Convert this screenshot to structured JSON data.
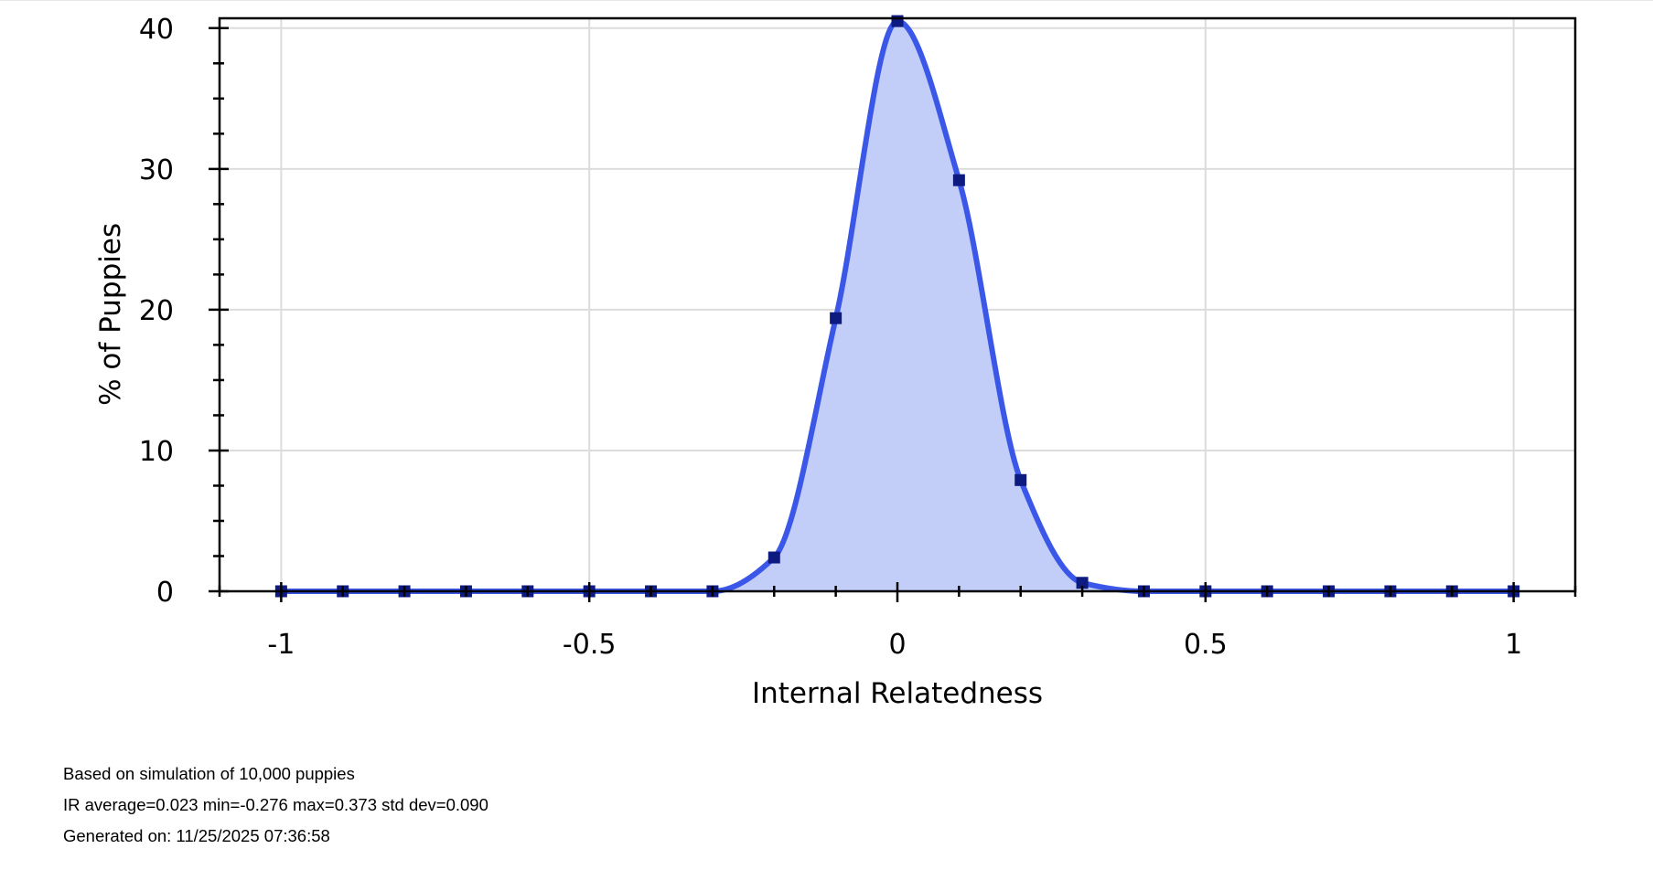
{
  "chart_data": {
    "type": "line",
    "title": "",
    "xlabel": "Internal Relatedness",
    "ylabel": "% of Puppies",
    "xlim": [
      -1.1,
      1.1
    ],
    "ylim": [
      0,
      40.7
    ],
    "x_ticks": [
      -1,
      -0.5,
      0,
      0.5,
      1
    ],
    "x_tick_labels": [
      "-1",
      "-0.5",
      "0",
      "0.5",
      "1"
    ],
    "x_minor_step": 0.1,
    "y_ticks": [
      0,
      10,
      20,
      30,
      40
    ],
    "y_tick_labels": [
      "0",
      "10",
      "20",
      "30",
      "40"
    ],
    "y_minor_step": 2.5,
    "grid": true,
    "area_fill": true,
    "colors": {
      "line": "#3b57e8",
      "fill": "#c2cdf8",
      "marker": "#0d1a80",
      "grid": "#dcdcdc",
      "axis": "#000000"
    },
    "x": [
      -1,
      -0.9,
      -0.8,
      -0.7,
      -0.6,
      -0.5,
      -0.4,
      -0.3,
      -0.2,
      -0.1,
      0,
      0.1,
      0.2,
      0.3,
      0.4,
      0.5,
      0.6,
      0.7,
      0.8,
      0.9,
      1
    ],
    "y": [
      0,
      0,
      0,
      0,
      0,
      0,
      0,
      0,
      2.4,
      19.4,
      40.5,
      29.2,
      7.9,
      0.6,
      0,
      0,
      0,
      0,
      0,
      0,
      0
    ]
  },
  "footer": {
    "line1": "Based on simulation of 10,000 puppies",
    "line2": "IR average=0.023 min=-0.276 max=0.373 std dev=0.090",
    "line3": "Generated on: 11/25/2025 07:36:58"
  }
}
